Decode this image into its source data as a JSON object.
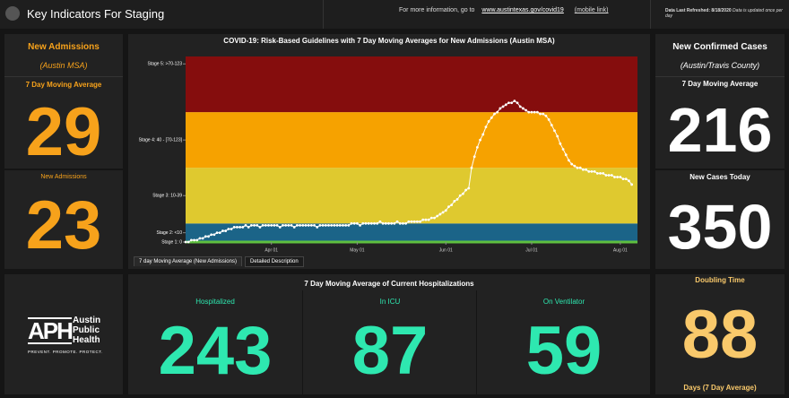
{
  "header": {
    "title": "Key Indicators For Staging",
    "info_text": "For more information, go to",
    "link": "www.austintexas.gov/covid19",
    "mobile_link": "(mobile link)",
    "refreshed": "Data Last Refreshed: 8/18/2020",
    "refreshed_note": "Data is updated once per day"
  },
  "admissions": {
    "title": "New Admissions",
    "region": "(Austin MSA)",
    "avg_label": "7 Day Moving Average",
    "avg_value": 29,
    "today_label": "New Admissions",
    "today_value": 23
  },
  "cases": {
    "title": "New Confirmed Cases",
    "region": "(Austin/Travis County)",
    "avg_label": "7 Day Moving Average",
    "avg_value": 216,
    "today_label": "New Cases Today",
    "today_value": 350
  },
  "logo": {
    "mark": "APH",
    "name": [
      "Austin",
      "Public",
      "Health"
    ],
    "tagline": "PREVENT. PROMOTE. PROTECT."
  },
  "hospitalizations": {
    "title": "7 Day Moving Average of Current Hospitalizations",
    "items": [
      {
        "label": "Hospitalized",
        "value": 243
      },
      {
        "label": "In ICU",
        "value": 87
      },
      {
        "label": "On Ventilator",
        "value": 59
      }
    ]
  },
  "doubling": {
    "title": "Doubling Time",
    "value": 88,
    "unit": "Days (7 Day Average)"
  },
  "tabs": [
    "7 day Moving Average (New Admissions)",
    "Detailed Description"
  ],
  "chart_data": {
    "type": "line",
    "title": "COVID-19: Risk-Based Guidelines with 7 Day Moving Averages for New Admissions (Austin MSA)",
    "values": [
      0,
      0,
      1,
      1,
      1,
      2,
      2,
      3,
      3,
      4,
      4,
      5,
      5,
      6,
      6,
      7,
      7,
      8,
      8,
      8,
      8,
      9,
      8,
      9,
      9,
      9,
      8,
      9,
      9,
      9,
      9,
      9,
      9,
      8,
      9,
      9,
      9,
      9,
      8,
      9,
      9,
      9,
      9,
      9,
      9,
      9,
      8,
      9,
      9,
      9,
      9,
      9,
      9,
      9,
      9,
      9,
      9,
      9,
      10,
      10,
      10,
      9,
      10,
      10,
      10,
      10,
      10,
      10,
      11,
      10,
      10,
      10,
      10,
      10,
      11,
      10,
      10,
      10,
      11,
      11,
      11,
      11,
      11,
      12,
      12,
      12,
      13,
      13,
      14,
      15,
      16,
      17,
      19,
      20,
      22,
      23,
      25,
      26,
      28,
      29,
      40,
      46,
      51,
      55,
      58,
      62,
      65,
      67,
      69,
      70,
      72,
      73,
      74,
      75,
      75,
      76,
      75,
      73,
      72,
      71,
      70,
      70,
      70,
      70,
      69,
      69,
      68,
      66,
      63,
      60,
      57,
      53,
      50,
      47,
      44,
      42,
      41,
      40,
      40,
      39,
      39,
      38,
      38,
      38,
      37,
      37,
      37,
      36,
      36,
      36,
      35,
      35,
      35,
      34,
      34,
      33,
      31
    ],
    "color": "#ffffff",
    "xlim": [
      0,
      158
    ],
    "ylim": [
      0,
      100
    ],
    "xticks": [
      {
        "value": 30,
        "label": "Apr 01"
      },
      {
        "value": 60,
        "label": "May 01"
      },
      {
        "value": 91,
        "label": "Jun 01"
      },
      {
        "value": 121,
        "label": "Jul 01"
      },
      {
        "value": 152,
        "label": "Aug 01"
      }
    ],
    "yticks": [
      {
        "value": 96,
        "label": "Stage 5: >70-123"
      },
      {
        "value": 55,
        "label": "Stage 4: 40 - [70-123]"
      },
      {
        "value": 25,
        "label": "Stage 3: 10-39"
      },
      {
        "value": 5,
        "label": "Stage 2: <10"
      },
      {
        "value": 0,
        "label": "Stage 1: 0"
      }
    ],
    "bands": [
      {
        "from": 0,
        "to": 10,
        "color": "#1b6488"
      },
      {
        "from": 10,
        "to": 40,
        "color": "#dfc92f"
      },
      {
        "from": 40,
        "to": 70,
        "color": "#f6a200"
      },
      {
        "from": 70,
        "to": 100,
        "color": "#850d0d"
      }
    ],
    "baseline_color": "#5fbf3f"
  }
}
